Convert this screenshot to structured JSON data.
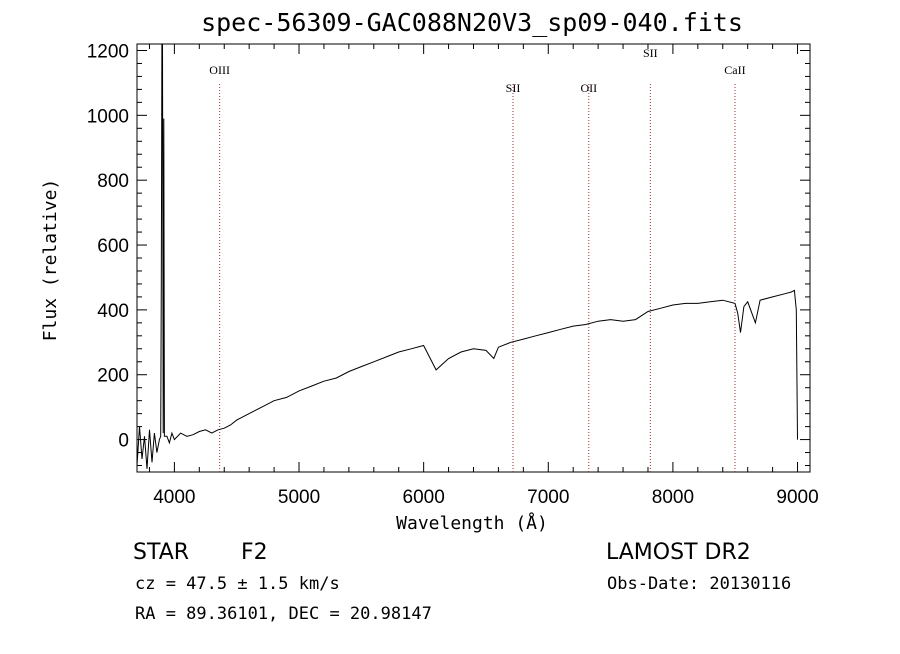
{
  "chart_data": {
    "type": "line",
    "title": "spec-56309-GAC088N20V3_sp09-040.fits",
    "xlabel": "Wavelength (Å)",
    "ylabel": "Flux (relative)",
    "xlim": [
      3700,
      9100
    ],
    "ylim": [
      -100,
      1220
    ],
    "xticks": [
      4000,
      5000,
      6000,
      7000,
      8000,
      9000
    ],
    "yticks": [
      0,
      200,
      400,
      600,
      800,
      1000,
      1200
    ],
    "series": [
      {
        "x": [
          3700,
          3720,
          3740,
          3760,
          3780,
          3800,
          3820,
          3840,
          3860,
          3880,
          3890,
          3895,
          3900,
          3905,
          3910,
          3915,
          3920,
          3940,
          3960,
          3980,
          4000,
          4050,
          4100,
          4150,
          4200,
          4250,
          4300,
          4350,
          4400,
          4450,
          4500,
          4600,
          4700,
          4800,
          4900,
          5000,
          5100,
          5200,
          5300,
          5400,
          5500,
          5600,
          5700,
          5800,
          5900,
          6000,
          6100,
          6200,
          6300,
          6400,
          6500,
          6563,
          6600,
          6700,
          6800,
          6900,
          7000,
          7100,
          7200,
          7300,
          7400,
          7500,
          7600,
          7700,
          7800,
          7900,
          8000,
          8100,
          8200,
          8300,
          8400,
          8498,
          8520,
          8542,
          8570,
          8600,
          8662,
          8700,
          8800,
          8900,
          8950,
          8975,
          8990,
          9000
        ],
        "y": [
          -80,
          40,
          -60,
          10,
          -90,
          30,
          -70,
          20,
          -40,
          0,
          10,
          480,
          1220,
          1220,
          20,
          990,
          10,
          10,
          -10,
          20,
          0,
          20,
          10,
          15,
          25,
          30,
          20,
          30,
          35,
          45,
          60,
          80,
          100,
          120,
          130,
          150,
          165,
          180,
          190,
          210,
          225,
          240,
          255,
          270,
          280,
          290,
          215,
          250,
          270,
          280,
          275,
          250,
          285,
          300,
          310,
          320,
          330,
          340,
          350,
          355,
          365,
          370,
          365,
          370,
          395,
          405,
          415,
          420,
          420,
          425,
          430,
          420,
          390,
          330,
          410,
          425,
          360,
          430,
          440,
          450,
          455,
          460,
          400,
          0
        ]
      }
    ],
    "lines": [
      {
        "label": "OIII",
        "x": 4363
      },
      {
        "label": "SII",
        "x": 6717
      },
      {
        "label": "OII",
        "x": 7325
      },
      {
        "label": "SII",
        "x": 7819
      },
      {
        "label": "CaII",
        "x": 8498
      }
    ]
  },
  "info": {
    "class_label": "STAR",
    "subclass_label": "F2",
    "survey": "LAMOST DR2",
    "cz": "cz = 47.5 ± 1.5 km/s",
    "obs_date": "Obs-Date: 20130116",
    "coords": "RA =  89.36101, DEC =  20.98147"
  },
  "colors": {
    "spectrum": "#000000",
    "line_marker": "#a0302a",
    "frame": "#000000"
  }
}
